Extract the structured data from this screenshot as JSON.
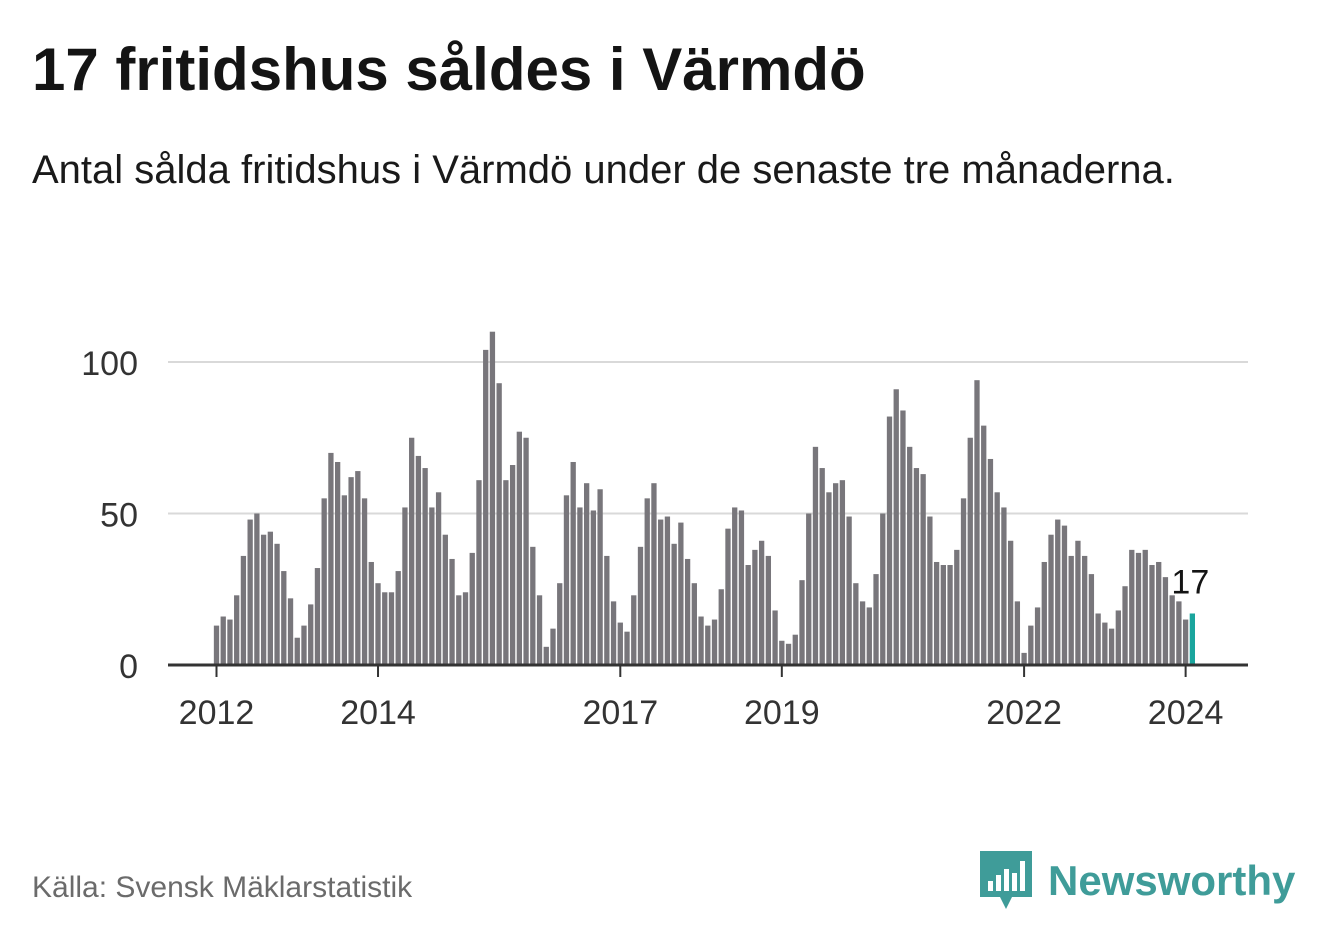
{
  "title": "17 fritidshus såldes i Värmdö",
  "subtitle": "Antal sålda fritidshus i Värmdö under de senaste tre månaderna.",
  "source": "Källa: Svensk Mäklarstatistik",
  "brand": {
    "name": "Newsworthy",
    "icon": "bar-chart-speech-bubble-icon",
    "color": "#3f9c99"
  },
  "colors": {
    "bar": "#78767b",
    "highlight": "#1aa59d",
    "grid": "#d9d9d9",
    "axis": "#333333",
    "text": "#333333"
  },
  "chart_data": {
    "type": "bar",
    "title": "17 fritidshus såldes i Värmdö",
    "xlabel": "",
    "ylabel": "",
    "ylim": [
      0,
      110
    ],
    "y_ticks": [
      0,
      50,
      100
    ],
    "x_tick_labels": [
      "2012",
      "2014",
      "2017",
      "2019",
      "2022",
      "2024"
    ],
    "x_tick_index": [
      0,
      24,
      60,
      84,
      120,
      144
    ],
    "series": [
      {
        "name": "Antal sålda fritidshus (3 månader)",
        "start": "2012-01",
        "values": [
          13,
          16,
          15,
          23,
          36,
          48,
          50,
          43,
          44,
          40,
          31,
          22,
          9,
          13,
          20,
          32,
          55,
          70,
          67,
          56,
          62,
          64,
          55,
          34,
          27,
          24,
          24,
          31,
          52,
          75,
          69,
          65,
          52,
          57,
          43,
          35,
          23,
          24,
          37,
          61,
          104,
          110,
          93,
          61,
          66,
          77,
          75,
          39,
          23,
          6,
          12,
          27,
          56,
          67,
          52,
          60,
          51,
          58,
          36,
          21,
          14,
          11,
          23,
          39,
          55,
          60,
          48,
          49,
          40,
          47,
          35,
          27,
          16,
          13,
          15,
          25,
          45,
          52,
          51,
          33,
          38,
          41,
          36,
          18,
          8,
          7,
          10,
          28,
          50,
          72,
          65,
          57,
          60,
          61,
          49,
          27,
          21,
          19,
          30,
          50,
          82,
          91,
          84,
          72,
          65,
          63,
          49,
          34,
          33,
          33,
          38,
          55,
          75,
          94,
          79,
          68,
          57,
          52,
          41,
          21,
          4,
          13,
          19,
          34,
          43,
          48,
          46,
          36,
          41,
          36,
          30,
          17,
          14,
          12,
          18,
          26,
          38,
          37,
          38,
          33,
          34,
          29,
          23,
          21,
          15,
          17
        ]
      }
    ],
    "annotation": {
      "index": 145,
      "label": "17"
    }
  }
}
